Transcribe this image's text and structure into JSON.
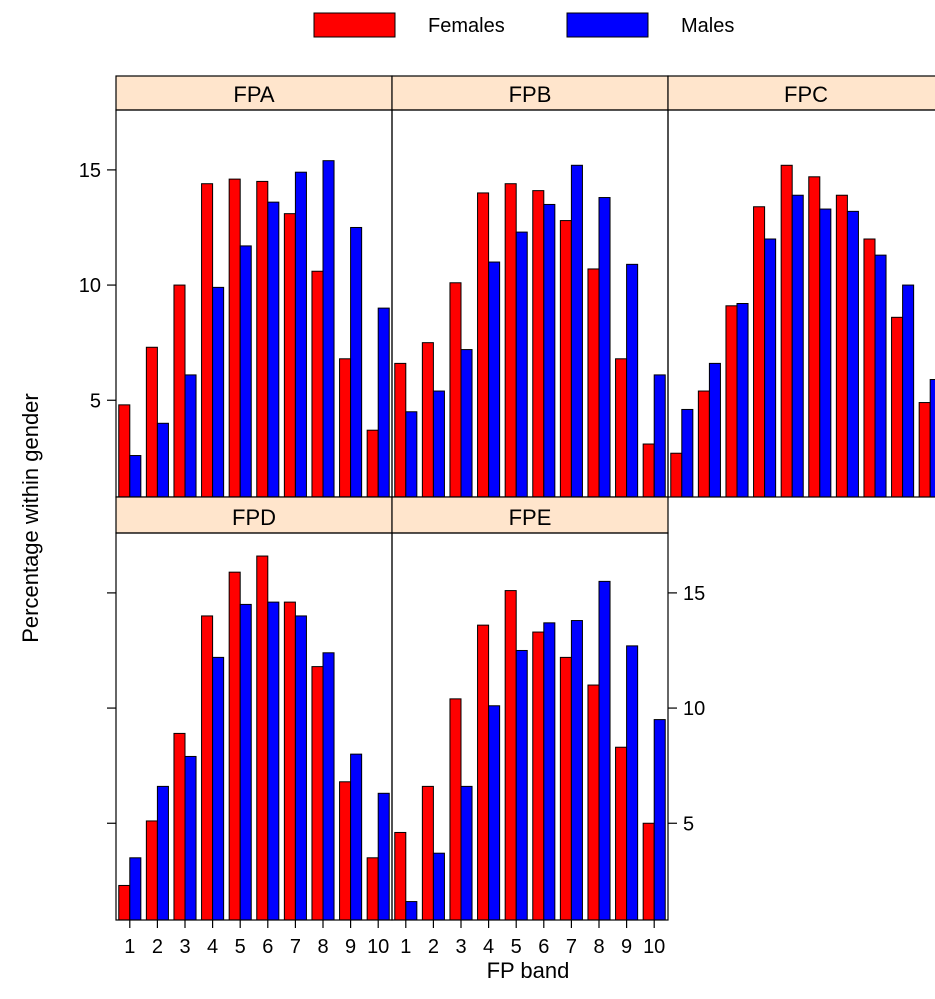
{
  "chart_data": {
    "type": "bar",
    "layout": "lattice 3 columns x 2 rows, panels FPA FPB FPC on top row, FPD FPE on bottom row",
    "xlabel": "FP band",
    "ylabel": "Percentage within gender",
    "categories": [
      "1",
      "2",
      "3",
      "4",
      "5",
      "6",
      "7",
      "8",
      "9",
      "10"
    ],
    "ylim": [
      0.8,
      17.6
    ],
    "yticks": [
      "5",
      "10",
      "15"
    ],
    "grid": false,
    "legend": {
      "placement": "top-center",
      "entries": [
        {
          "name": "Females",
          "color": "#ff0000"
        },
        {
          "name": "Males",
          "color": "#0000ff"
        }
      ]
    },
    "strip_color": "#ffe5cc",
    "panels": [
      {
        "name": "FPA",
        "series": [
          {
            "name": "Females",
            "values": [
              4.8,
              7.3,
              10.0,
              14.4,
              14.6,
              14.5,
              13.1,
              10.6,
              6.8,
              3.7
            ]
          },
          {
            "name": "Males",
            "values": [
              2.6,
              4.0,
              6.1,
              9.9,
              11.7,
              13.6,
              14.9,
              15.4,
              12.5,
              9.0
            ]
          }
        ]
      },
      {
        "name": "FPB",
        "series": [
          {
            "name": "Females",
            "values": [
              6.6,
              7.5,
              10.1,
              14.0,
              14.4,
              14.1,
              12.8,
              10.7,
              6.8,
              3.1
            ]
          },
          {
            "name": "Males",
            "values": [
              4.5,
              5.4,
              7.2,
              11.0,
              12.3,
              13.5,
              15.2,
              13.8,
              10.9,
              6.1
            ]
          }
        ]
      },
      {
        "name": "FPC",
        "series": [
          {
            "name": "Females",
            "values": [
              2.7,
              5.4,
              9.1,
              13.4,
              15.2,
              14.7,
              13.9,
              12.0,
              8.6,
              4.9
            ]
          },
          {
            "name": "Males",
            "values": [
              4.6,
              6.6,
              9.2,
              12.0,
              13.9,
              13.3,
              13.2,
              11.3,
              10.0,
              5.9
            ]
          }
        ]
      },
      {
        "name": "FPD",
        "series": [
          {
            "name": "Females",
            "values": [
              2.3,
              5.1,
              8.9,
              14.0,
              15.9,
              16.6,
              14.6,
              11.8,
              6.8,
              3.5
            ]
          },
          {
            "name": "Males",
            "values": [
              3.5,
              6.6,
              7.9,
              12.2,
              14.5,
              14.6,
              14.0,
              12.4,
              8.0,
              6.3
            ]
          }
        ]
      },
      {
        "name": "FPE",
        "series": [
          {
            "name": "Females",
            "values": [
              4.6,
              6.6,
              10.4,
              13.6,
              15.1,
              13.3,
              12.2,
              11.0,
              8.3,
              5.0
            ]
          },
          {
            "name": "Males",
            "values": [
              1.6,
              3.7,
              6.6,
              10.1,
              12.5,
              13.7,
              13.8,
              15.5,
              12.7,
              9.5
            ]
          }
        ]
      }
    ]
  }
}
